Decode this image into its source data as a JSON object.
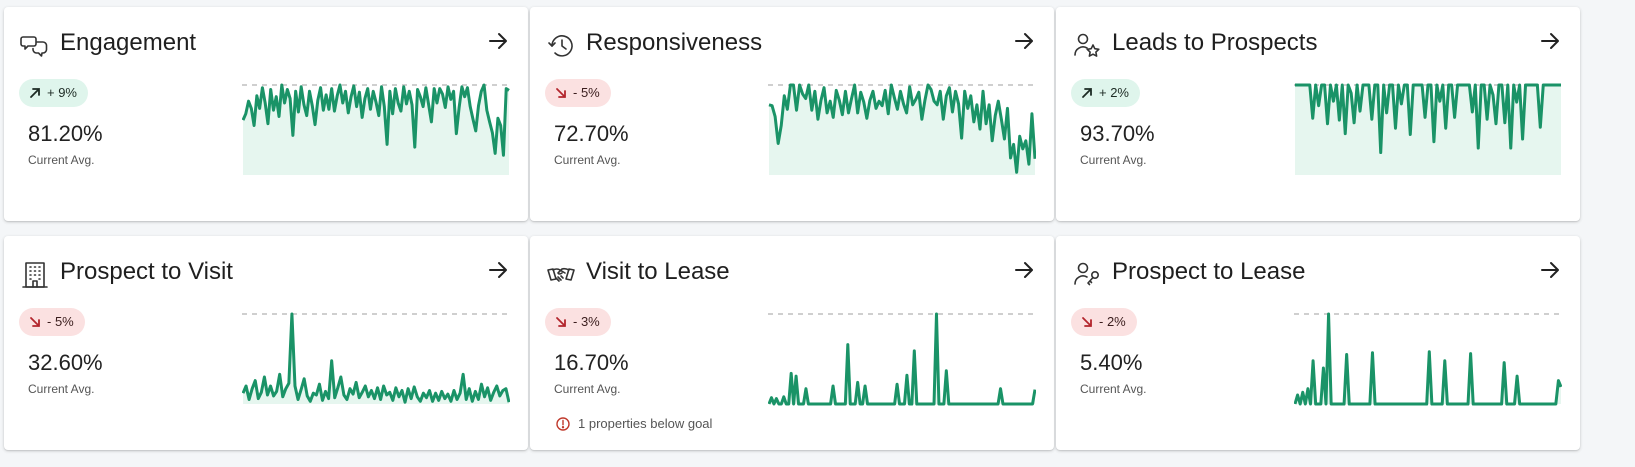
{
  "colors": {
    "line": "#1a9367",
    "area": "#e6f6ef",
    "goal": "#cfcfcf",
    "up_badge_bg": "#dff5ec",
    "down_badge_bg": "#fbe1e1",
    "up_arrow": "#1d2b24",
    "down_arrow": "#b3262d",
    "warning": "#c0392b"
  },
  "cards": [
    {
      "id": "engagement",
      "title": "Engagement",
      "icon": "chat-bubbles-icon",
      "trend": "up",
      "change": "+ 9%",
      "avg": "81.20%",
      "avg_label": "Current Avg.",
      "note": "",
      "series": [
        0.61,
        0.68,
        0.82,
        0.74,
        0.55,
        0.88,
        0.74,
        0.97,
        0.8,
        0.57,
        0.95,
        0.72,
        0.87,
        0.65,
        1.0,
        0.8,
        0.95,
        0.85,
        0.44,
        0.93,
        0.7,
        0.98,
        0.78,
        0.66,
        0.93,
        0.77,
        0.56,
        0.83,
        0.97,
        0.72,
        0.89,
        0.73,
        0.96,
        0.71,
        0.88,
        1.0,
        0.8,
        0.93,
        0.69,
        0.87,
        0.99,
        0.76,
        0.92,
        0.64,
        0.85,
        0.96,
        0.73,
        0.93,
        0.81,
        0.66,
        0.98,
        0.76,
        0.34,
        0.93,
        0.68,
        0.96,
        0.8,
        0.71,
        0.98,
        0.79,
        0.93,
        0.78,
        0.31,
        0.95,
        0.87,
        0.76,
        0.97,
        0.78,
        0.59,
        0.96,
        0.8,
        0.96,
        0.9,
        0.75,
        0.98,
        0.84,
        0.93,
        0.46,
        0.75,
        0.98,
        0.87,
        0.97,
        0.76,
        0.62,
        0.49,
        0.77,
        0.93,
        1.0,
        0.72,
        0.59,
        0.47,
        0.24,
        0.63,
        0.55,
        0.22,
        0.96,
        0.94
      ],
      "goal": 1.0
    },
    {
      "id": "responsiveness",
      "title": "Responsiveness",
      "icon": "history-clock-icon",
      "trend": "down",
      "change": "- 5%",
      "avg": "72.70%",
      "avg_label": "Current Avg.",
      "note": "",
      "series": [
        0.78,
        0.77,
        0.65,
        0.35,
        0.55,
        0.88,
        0.73,
        1.0,
        1.0,
        0.72,
        1.0,
        0.9,
        0.85,
        1.0,
        0.72,
        0.93,
        0.62,
        0.83,
        0.97,
        0.69,
        0.82,
        0.64,
        0.94,
        0.83,
        0.67,
        0.93,
        0.69,
        0.85,
        1.0,
        0.69,
        0.92,
        0.81,
        0.63,
        0.83,
        0.93,
        0.74,
        0.82,
        0.77,
        0.94,
        0.68,
        1.0,
        0.86,
        0.73,
        0.93,
        0.79,
        0.69,
        0.98,
        0.78,
        0.84,
        0.92,
        0.62,
        0.83,
        1.0,
        0.95,
        0.82,
        0.78,
        0.93,
        0.62,
        0.88,
        0.97,
        0.7,
        0.93,
        0.79,
        0.41,
        0.93,
        0.74,
        0.88,
        0.59,
        0.78,
        0.51,
        0.93,
        0.57,
        0.78,
        0.38,
        0.66,
        0.82,
        0.62,
        0.4,
        0.74,
        0.19,
        0.34,
        0.03,
        0.43,
        0.29,
        0.38,
        0.12,
        0.68,
        0.18
      ],
      "goal": 1.0
    },
    {
      "id": "leads-to-prospects",
      "title": "Leads to Prospects",
      "icon": "person-star-icon",
      "trend": "up",
      "change": "+ 2%",
      "avg": "93.70%",
      "avg_label": "Current Avg.",
      "note": "",
      "series": [
        1.0,
        1.0,
        1.0,
        1.0,
        1.0,
        1.0,
        0.63,
        1.0,
        0.77,
        1.0,
        1.0,
        0.57,
        1.0,
        0.82,
        1.0,
        0.61,
        1.0,
        0.46,
        1.0,
        0.91,
        0.58,
        1.0,
        0.71,
        1.0,
        1.0,
        1.0,
        0.62,
        1.0,
        1.0,
        0.25,
        1.0,
        0.69,
        1.0,
        1.0,
        0.52,
        1.0,
        0.79,
        1.0,
        1.0,
        0.45,
        1.0,
        1.0,
        1.0,
        1.0,
        0.64,
        1.0,
        1.0,
        0.37,
        1.0,
        0.82,
        1.0,
        0.52,
        1.0,
        1.0,
        0.64,
        1.0,
        1.0,
        1.0,
        1.0,
        1.0,
        0.7,
        1.0,
        0.3,
        1.0,
        1.0,
        0.62,
        1.0,
        0.89,
        0.57,
        1.0,
        1.0,
        0.58,
        1.0,
        0.3,
        1.0,
        0.81,
        1.0,
        0.4,
        1.0,
        1.0,
        1.0,
        1.0,
        1.0,
        0.53,
        1.0,
        1.0,
        1.0,
        1.0,
        1.0,
        1.0,
        1.0
      ],
      "goal": 1.0
    },
    {
      "id": "prospect-to-visit",
      "title": "Prospect to Visit",
      "icon": "building-icon",
      "trend": "down",
      "change": "- 5%",
      "avg": "32.60%",
      "avg_label": "Current Avg.",
      "note": "",
      "series": [
        0.12,
        0.2,
        0.05,
        0.17,
        0.26,
        0.06,
        0.13,
        0.3,
        0.1,
        0.2,
        0.09,
        0.14,
        0.33,
        0.08,
        0.17,
        0.23,
        1.0,
        0.2,
        0.05,
        0.16,
        0.28,
        0.09,
        0.03,
        0.12,
        0.1,
        0.22,
        0.04,
        0.14,
        0.06,
        0.48,
        0.07,
        0.18,
        0.3,
        0.1,
        0.05,
        0.17,
        0.11,
        0.24,
        0.07,
        0.13,
        0.2,
        0.08,
        0.15,
        0.06,
        0.18,
        0.05,
        0.2,
        0.1,
        0.13,
        0.04,
        0.18,
        0.08,
        0.15,
        0.02,
        0.17,
        0.06,
        0.19,
        0.08,
        0.03,
        0.12,
        0.07,
        0.15,
        0.03,
        0.12,
        0.04,
        0.14,
        0.06,
        0.11,
        0.03,
        0.15,
        0.05,
        0.12,
        0.33,
        0.05,
        0.17,
        0.03,
        0.14,
        0.05,
        0.22,
        0.08,
        0.18,
        0.04,
        0.13,
        0.2,
        0.09,
        0.15,
        0.17,
        0.02
      ],
      "goal": 1.0
    },
    {
      "id": "visit-to-lease",
      "title": "Visit to Lease",
      "icon": "handshake-icon",
      "trend": "down",
      "change": "- 3%",
      "avg": "16.70%",
      "avg_label": "Current Avg.",
      "note": "1 properties below goal",
      "series": [
        0.0,
        0.07,
        0.0,
        0.06,
        0.0,
        0.0,
        0.08,
        0.0,
        0.0,
        0.34,
        0.0,
        0.31,
        0.0,
        0.0,
        0.0,
        0.17,
        0.0,
        0.0,
        0.0,
        0.0,
        0.0,
        0.0,
        0.0,
        0.0,
        0.0,
        0.0,
        0.2,
        0.0,
        0.0,
        0.0,
        0.0,
        0.0,
        0.66,
        0.0,
        0.0,
        0.0,
        0.24,
        0.0,
        0.0,
        0.2,
        0.0,
        0.0,
        0.0,
        0.0,
        0.0,
        0.0,
        0.0,
        0.0,
        0.0,
        0.0,
        0.0,
        0.0,
        0.22,
        0.0,
        0.0,
        0.0,
        0.32,
        0.0,
        0.0,
        0.59,
        0.0,
        0.0,
        0.0,
        0.0,
        0.0,
        0.0,
        0.0,
        0.0,
        1.0,
        0.0,
        0.0,
        0.0,
        0.37,
        0.0,
        0.0,
        0.0,
        0.0,
        0.0,
        0.0,
        0.0,
        0.0,
        0.0,
        0.0,
        0.0,
        0.0,
        0.0,
        0.0,
        0.0,
        0.0,
        0.0,
        0.0,
        0.0,
        0.0,
        0.0,
        0.17,
        0.0,
        0.0,
        0.0,
        0.0,
        0.0,
        0.0,
        0.0,
        0.0,
        0.0,
        0.0,
        0.0,
        0.0,
        0.0,
        0.16
      ],
      "goal": 1.0
    },
    {
      "id": "prospect-to-lease",
      "title": "Prospect to Lease",
      "icon": "person-key-icon",
      "trend": "down",
      "change": "- 2%",
      "avg": "5.40%",
      "avg_label": "Current Avg.",
      "note": "",
      "series": [
        0.0,
        0.1,
        0.0,
        0.13,
        0.0,
        0.17,
        0.0,
        0.48,
        0.0,
        0.0,
        0.0,
        0.4,
        0.0,
        1.0,
        0.0,
        0.0,
        0.0,
        0.0,
        0.0,
        0.0,
        0.55,
        0.0,
        0.0,
        0.0,
        0.0,
        0.0,
        0.0,
        0.0,
        0.0,
        0.0,
        0.57,
        0.0,
        0.0,
        0.0,
        0.0,
        0.0,
        0.0,
        0.0,
        0.0,
        0.0,
        0.0,
        0.0,
        0.0,
        0.0,
        0.0,
        0.0,
        0.0,
        0.0,
        0.0,
        0.0,
        0.0,
        0.0,
        0.58,
        0.0,
        0.0,
        0.0,
        0.0,
        0.0,
        0.48,
        0.0,
        0.0,
        0.0,
        0.0,
        0.0,
        0.0,
        0.0,
        0.0,
        0.0,
        0.56,
        0.0,
        0.0,
        0.0,
        0.0,
        0.0,
        0.0,
        0.0,
        0.0,
        0.0,
        0.0,
        0.0,
        0.0,
        0.46,
        0.0,
        0.0,
        0.0,
        0.0,
        0.31,
        0.0,
        0.0,
        0.0,
        0.0,
        0.0,
        0.0,
        0.0,
        0.0,
        0.0,
        0.0,
        0.0,
        0.0,
        0.0,
        0.0,
        0.0,
        0.26,
        0.19
      ],
      "goal": 1.0
    }
  ]
}
